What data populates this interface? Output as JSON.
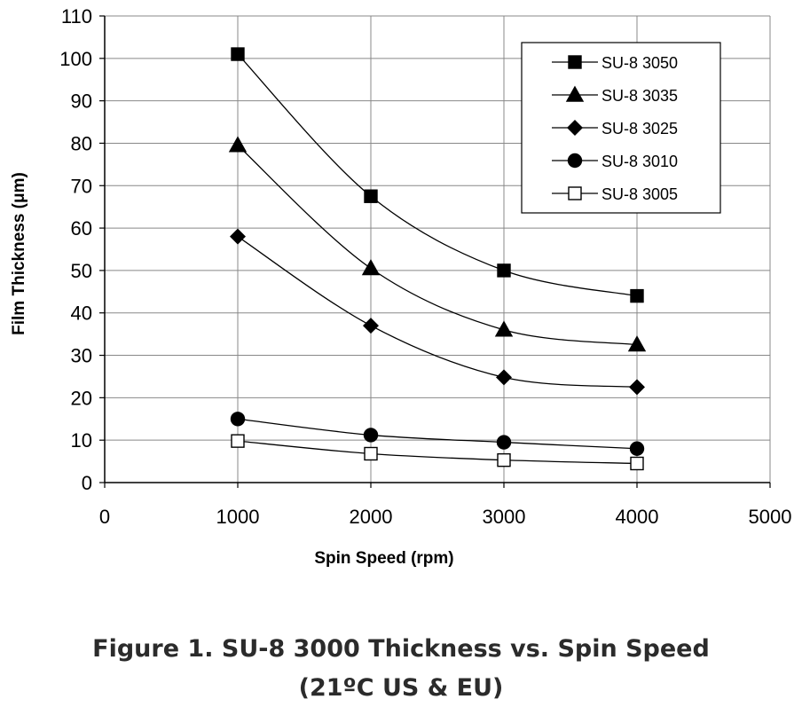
{
  "chart_data": {
    "type": "line",
    "title": "",
    "xlabel": "Spin Speed (rpm)",
    "ylabel": "Film Thickness (μm)",
    "xlim": [
      0,
      5000
    ],
    "ylim": [
      0,
      110
    ],
    "xticks": [
      0,
      1000,
      2000,
      3000,
      4000,
      5000
    ],
    "yticks": [
      0,
      10,
      20,
      30,
      40,
      50,
      60,
      70,
      80,
      90,
      100,
      110
    ],
    "grid": true,
    "legend_position": "top-right",
    "x": [
      1000,
      2000,
      3000,
      4000
    ],
    "series": [
      {
        "name": "SU-8 3050",
        "marker": "filled-square",
        "values": [
          101,
          67.5,
          50,
          44
        ]
      },
      {
        "name": "SU-8 3035",
        "marker": "filled-triangle",
        "values": [
          79.5,
          50.5,
          36,
          32.5
        ]
      },
      {
        "name": "SU-8 3025",
        "marker": "filled-diamond",
        "values": [
          58,
          37,
          24.8,
          22.5
        ]
      },
      {
        "name": "SU-8 3010",
        "marker": "filled-circle",
        "values": [
          15,
          11.2,
          9.5,
          8
        ]
      },
      {
        "name": "SU-8 3005",
        "marker": "open-square",
        "values": [
          9.8,
          6.8,
          5.3,
          4.5
        ]
      }
    ]
  },
  "caption": {
    "line1": "Figure 1. SU-8 3000 Thickness vs. Spin Speed",
    "line2": "(21ºC US & EU)"
  }
}
